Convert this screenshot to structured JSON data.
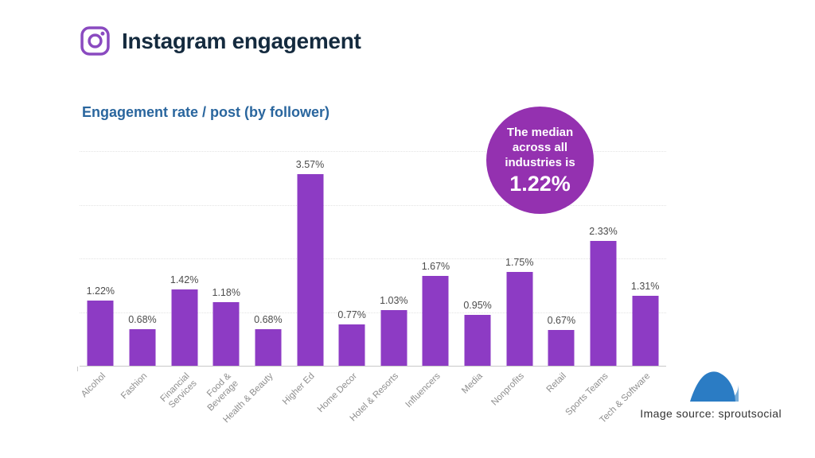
{
  "header": {
    "title": "Instagram engagement",
    "icon": "instagram-icon"
  },
  "chart_data": {
    "type": "bar",
    "title": "Engagement rate / post (by follower)",
    "categories": [
      "Alcohol",
      "Fashion",
      "Financial Services",
      "Food & Beverage",
      "Health & Beauty",
      "Higher Ed",
      "Home Decor",
      "Hotel & Resorts",
      "Influencers",
      "Media",
      "Nonprofits",
      "Retail",
      "Sports Teams",
      "Tech & Software"
    ],
    "tick_labels": [
      "Alcohol",
      "Fashion",
      "Financial\nServices",
      "Food &\nBeverage",
      "Health & Beauty",
      "Higher Ed",
      "Home Decor",
      "Hotel & Resorts",
      "Influencers",
      "Media",
      "Nonprofits",
      "Retail",
      "Sports Teams",
      "Tech & Software"
    ],
    "values": [
      1.22,
      0.68,
      1.42,
      1.18,
      0.68,
      3.57,
      0.77,
      1.03,
      1.67,
      0.95,
      1.75,
      0.67,
      2.33,
      1.31
    ],
    "value_labels": [
      "1.22%",
      "0.68%",
      "1.42%",
      "1.18%",
      "0.68%",
      "3.57%",
      "0.77%",
      "1.03%",
      "1.67%",
      "0.95%",
      "1.75%",
      "0.67%",
      "2.33%",
      "1.31%"
    ],
    "xlabel": "",
    "ylabel": "",
    "ylim": [
      0,
      4
    ],
    "grid": true,
    "legend": "none",
    "bar_color": "#8d3bc4"
  },
  "median_badge": {
    "line1": "The median",
    "line2": "across all",
    "line3": "industries is",
    "value": "1.22%",
    "color": "#9431b0"
  },
  "footer": {
    "source": "Image source: sproutsocial",
    "logo": "sproutsocial-logo",
    "logo_color": "#2b7cc4",
    "logo_accent_color": "#77add9"
  },
  "colors": {
    "title": "#142a3e",
    "subtitle": "#2a669e",
    "instagram_icon": "#8a4ac0",
    "value_label": "#4c4c4c",
    "category_label": "#8e8e8e",
    "gridline": "#e3e3e3"
  }
}
